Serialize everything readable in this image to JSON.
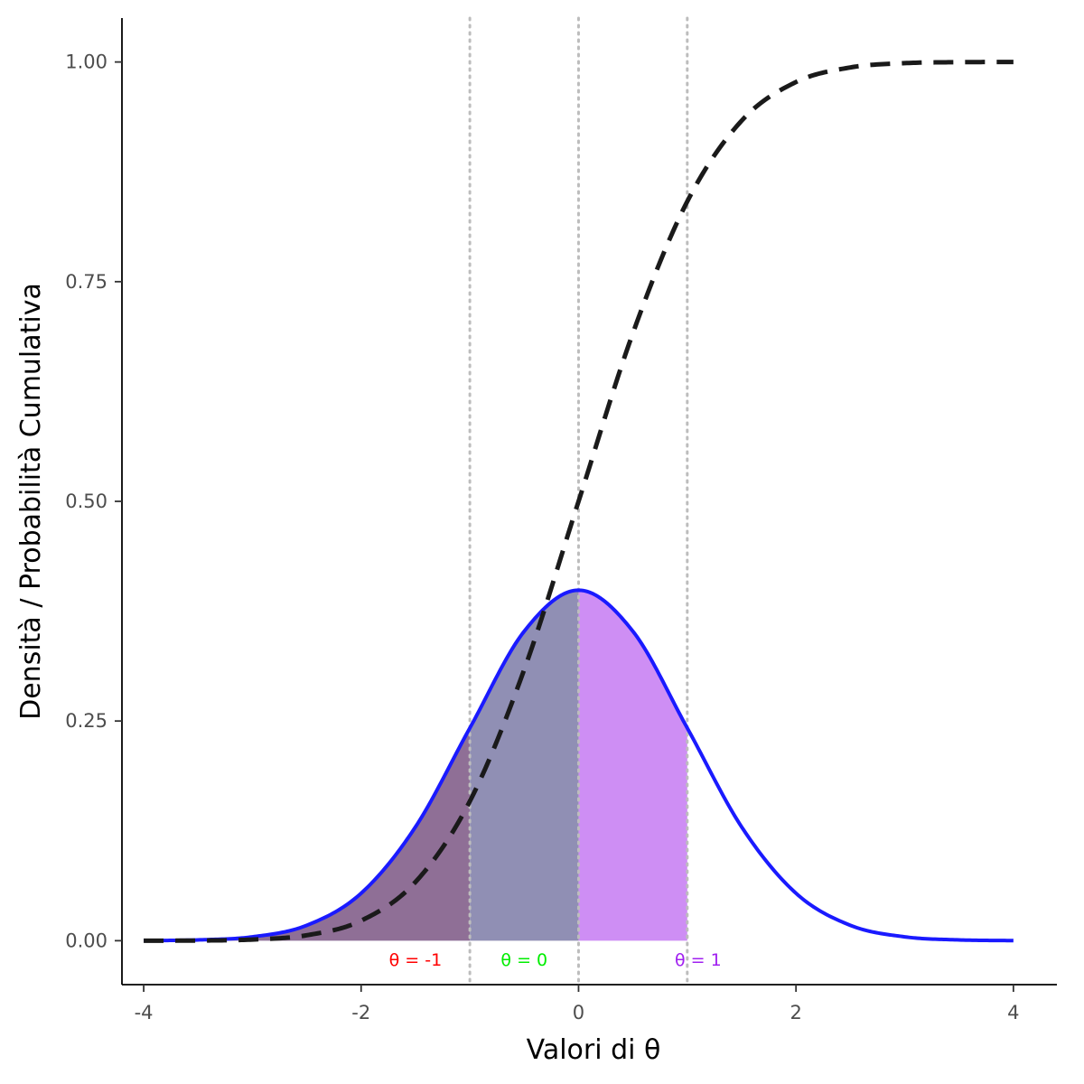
{
  "chart_data": {
    "type": "area",
    "title": "",
    "xlabel": "Valori di θ",
    "ylabel": "Densità / Probabilità Cumulativa",
    "xlim": [
      -4.2,
      4.4
    ],
    "ylim": [
      -0.05,
      1.05
    ],
    "x_ticks": [
      -4,
      -2,
      0,
      2,
      4
    ],
    "x_tick_labels": [
      "-4",
      "-2",
      "0",
      "2",
      "4"
    ],
    "y_ticks": [
      0,
      0.25,
      0.5,
      0.75,
      1.0
    ],
    "y_tick_labels": [
      "0.00",
      "0.25",
      "0.50",
      "0.75",
      "1.00"
    ],
    "grid": false,
    "legend": "none",
    "x": [
      -4,
      -3.5,
      -3,
      -2.5,
      -2,
      -1.5,
      -1,
      -0.5,
      0,
      0.5,
      1,
      1.5,
      2,
      2.5,
      3,
      3.5,
      4
    ],
    "series": [
      {
        "style": "solid",
        "color": "#1a1aff",
        "values": [
          0.0001,
          0.0009,
          0.0044,
          0.0175,
          0.054,
          0.1295,
          0.242,
          0.3521,
          0.3989,
          0.3521,
          0.242,
          0.1295,
          0.054,
          0.0175,
          0.0044,
          0.0009,
          0.0001
        ]
      },
      {
        "style": "dashed",
        "color": "#1a1a1a",
        "values": [
          0.0,
          0.0002,
          0.0013,
          0.0062,
          0.0228,
          0.0668,
          0.1587,
          0.3085,
          0.5,
          0.6915,
          0.8413,
          0.9332,
          0.9772,
          0.9938,
          0.9987,
          0.9998,
          1.0
        ]
      }
    ],
    "shaded_regions": [
      {
        "from": -4,
        "to": -1,
        "color": "#8f6f96"
      },
      {
        "from": -1,
        "to": 0,
        "color": "#908fb4"
      },
      {
        "from": 0,
        "to": 1,
        "color": "#ce8ef4"
      }
    ],
    "vlines": [
      {
        "x": -1,
        "color": "#bdbdbd",
        "style": "dotted"
      },
      {
        "x": 0,
        "color": "#bdbdbd",
        "style": "dotted"
      },
      {
        "x": 1,
        "color": "#bdbdbd",
        "style": "dotted"
      }
    ],
    "annotations": [
      {
        "text": "θ = -1",
        "x": -1.5,
        "y": -0.012,
        "color": "#ff0000"
      },
      {
        "text": "θ = 0",
        "x": -0.5,
        "y": -0.012,
        "color": "#00ee00"
      },
      {
        "text": "θ = 1",
        "x": 1.1,
        "y": -0.012,
        "color": "#a020f0"
      }
    ]
  }
}
